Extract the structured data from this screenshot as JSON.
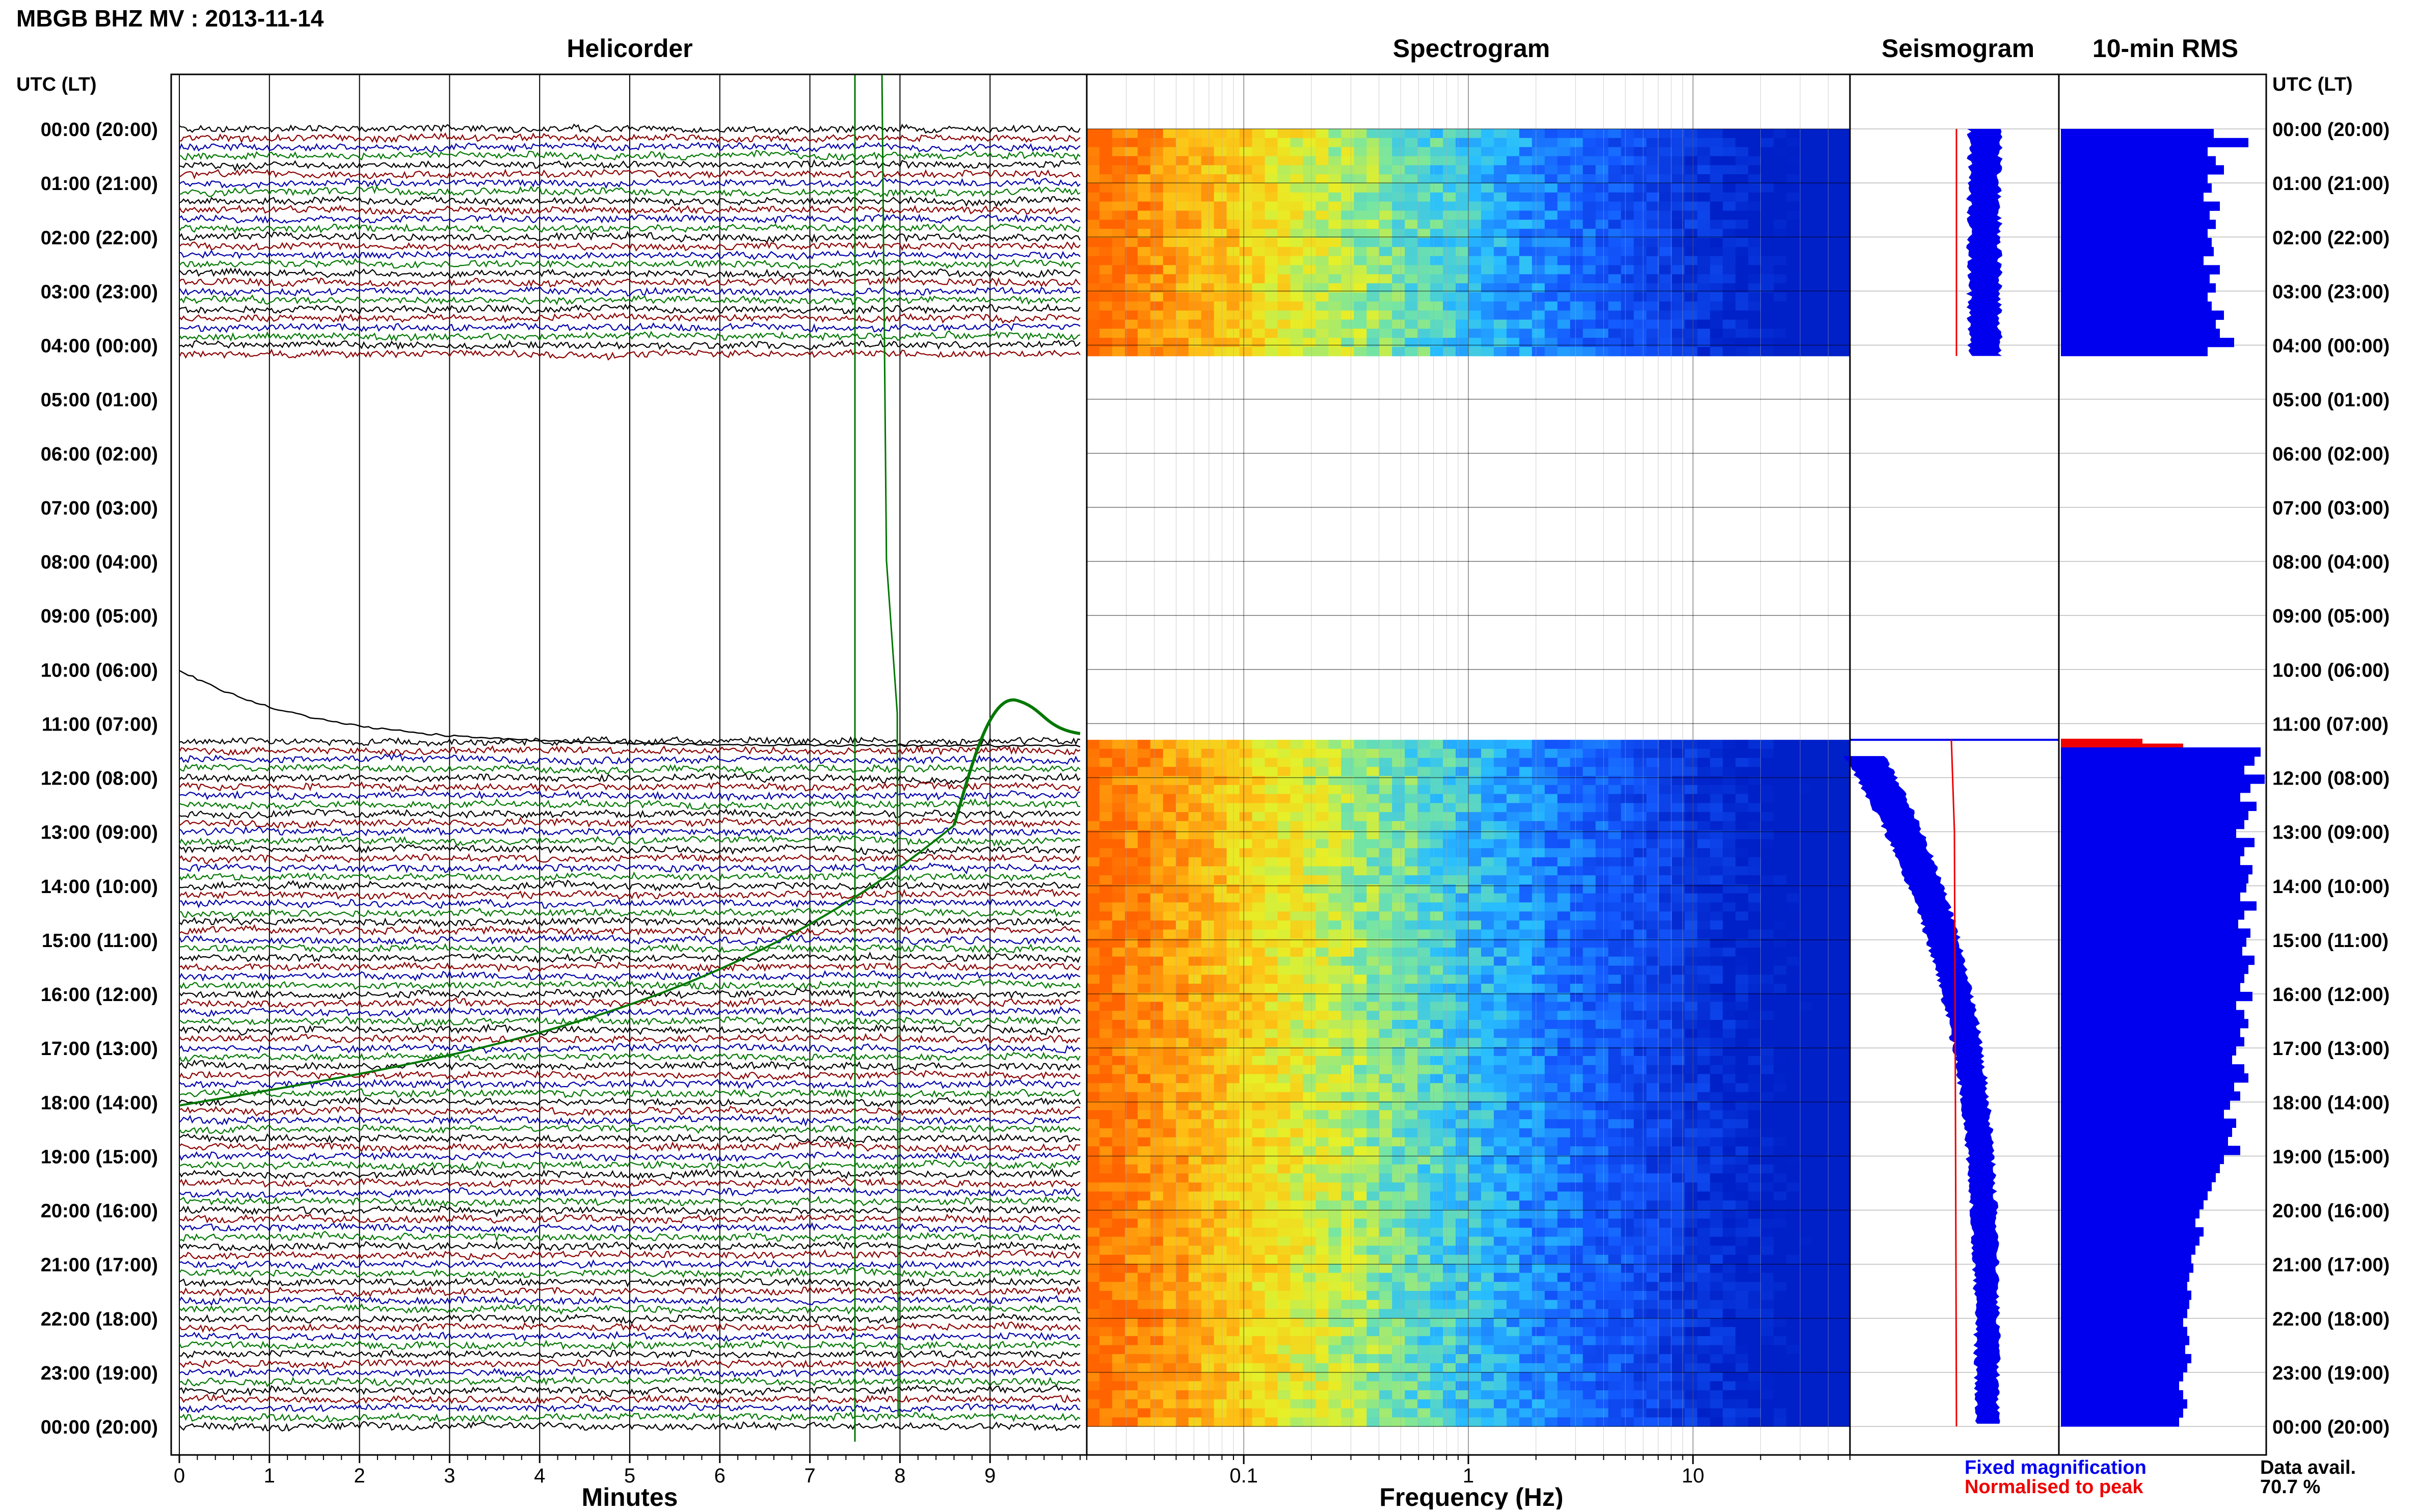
{
  "title": "MBGB BHZ MV : 2013-11-14",
  "time_axis_label": "UTC (LT)",
  "time_labels": [
    "00:00 (20:00)",
    "01:00 (21:00)",
    "02:00 (22:00)",
    "03:00 (23:00)",
    "04:00 (00:00)",
    "05:00 (01:00)",
    "06:00 (02:00)",
    "07:00 (03:00)",
    "08:00 (04:00)",
    "09:00 (05:00)",
    "10:00 (06:00)",
    "11:00 (07:00)",
    "12:00 (08:00)",
    "13:00 (09:00)",
    "14:00 (10:00)",
    "15:00 (11:00)",
    "16:00 (12:00)",
    "17:00 (13:00)",
    "18:00 (14:00)",
    "19:00 (15:00)",
    "20:00 (16:00)",
    "21:00 (17:00)",
    "22:00 (18:00)",
    "23:00 (19:00)",
    "00:00 (20:00)"
  ],
  "legend": {
    "fixed": "Fixed magnification",
    "normalised": "Normalised to peak",
    "fixed_color": "#0000ee",
    "normalised_color": "#ee0000"
  },
  "data_avail": {
    "label": "Data avail.",
    "value": "70.7 %"
  },
  "chart_data": [
    {
      "type": "line",
      "panel": "helicorder",
      "title": "Helicorder",
      "xlabel": "Minutes",
      "x_ticks": [
        "0",
        "1",
        "2",
        "3",
        "4",
        "5",
        "6",
        "7",
        "8",
        "9"
      ],
      "xlim": [
        0,
        10
      ],
      "y_range_hours": [
        0,
        24
      ],
      "trace_colors": [
        "#000000",
        "#8b0000",
        "#0000aa",
        "#007700"
      ],
      "data_gap_hours": [
        4.2,
        11.3
      ]
    },
    {
      "type": "heatmap",
      "panel": "spectrogram",
      "title": "Spectrogram",
      "xlabel": "Frequency (Hz)",
      "x_scale": "log",
      "xlim": [
        0.02,
        50
      ],
      "x_ticks": [
        "0.1",
        "1",
        "10"
      ],
      "y_range_hours": [
        0,
        24
      ],
      "data_gap_hours": [
        4.2,
        11.3
      ]
    },
    {
      "type": "line",
      "panel": "seismogram",
      "title": "Seismogram",
      "y_range_hours": [
        0,
        24
      ],
      "series": [
        {
          "name": "Fixed magnification",
          "color": "#0000ee"
        },
        {
          "name": "Normalised to peak",
          "color": "#ee0000"
        }
      ]
    },
    {
      "type": "bar",
      "panel": "rms",
      "title": "10-min RMS",
      "orientation": "horizontal",
      "y_range_hours": [
        0,
        24
      ],
      "relative_values": [
        0.75,
        0.92,
        0.72,
        0.76,
        0.8,
        0.72,
        0.74,
        0.7,
        0.78,
        0.73,
        0.76,
        0.72,
        0.74,
        0.75,
        0.7,
        0.78,
        0.73,
        0.76,
        0.72,
        0.74,
        0.8,
        0.76,
        0.78,
        0.85,
        0.72,
        0.4,
        0.6,
        0.98,
        0.95,
        0.9,
        1.0,
        0.93,
        0.88,
        0.96,
        0.92,
        0.9,
        0.86,
        0.95,
        0.9,
        0.88,
        0.94,
        0.92,
        0.91,
        0.88,
        0.96,
        0.9,
        0.87,
        0.93,
        0.91,
        0.89,
        0.95,
        0.92,
        0.9,
        0.88,
        0.94,
        0.86,
        0.9,
        0.92,
        0.88,
        0.9,
        0.86,
        0.84,
        0.9,
        0.92,
        0.85,
        0.88,
        0.83,
        0.8,
        0.86,
        0.84,
        0.82,
        0.88,
        0.8,
        0.78,
        0.76,
        0.74,
        0.72,
        0.7,
        0.68,
        0.66,
        0.7,
        0.68,
        0.66,
        0.64,
        0.65,
        0.63,
        0.62,
        0.64,
        0.63,
        0.62,
        0.6,
        0.62,
        0.63,
        0.61,
        0.64,
        0.62,
        0.6,
        0.58,
        0.6,
        0.62,
        0.6,
        0.58
      ]
    }
  ]
}
